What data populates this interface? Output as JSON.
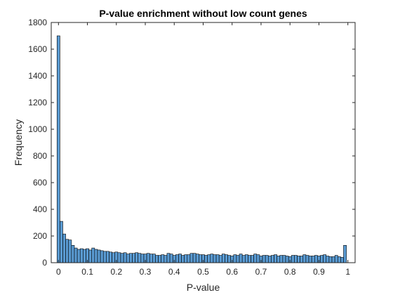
{
  "chart_data": {
    "type": "bar",
    "title": "P-value enrichment without low count genes",
    "xlabel": "P-value",
    "ylabel": "Frequency",
    "xlim": [
      -0.025,
      1.025
    ],
    "ylim": [
      0,
      1800
    ],
    "xticks": [
      0,
      0.1,
      0.2,
      0.3,
      0.4,
      0.5,
      0.6,
      0.7,
      0.8,
      0.9,
      1
    ],
    "xtick_labels": [
      "0",
      "0.1",
      "0.2",
      "0.3",
      "0.4",
      "0.5",
      "0.6",
      "0.7",
      "0.8",
      "0.9",
      "1"
    ],
    "yticks": [
      0,
      200,
      400,
      600,
      800,
      1000,
      1200,
      1400,
      1600,
      1800
    ],
    "ytick_labels": [
      "0",
      "200",
      "400",
      "600",
      "800",
      "1000",
      "1200",
      "1400",
      "1600",
      "1800"
    ],
    "grid": false,
    "bin_width": 0.01,
    "bin_start": -0.005,
    "values": [
      1700,
      310,
      215,
      175,
      170,
      130,
      110,
      100,
      105,
      100,
      105,
      95,
      110,
      100,
      95,
      90,
      85,
      85,
      80,
      75,
      80,
      75,
      70,
      75,
      65,
      70,
      70,
      75,
      70,
      65,
      65,
      70,
      65,
      65,
      55,
      55,
      60,
      55,
      70,
      65,
      55,
      60,
      65,
      55,
      60,
      60,
      70,
      70,
      65,
      60,
      60,
      55,
      60,
      65,
      60,
      60,
      55,
      65,
      60,
      55,
      50,
      60,
      55,
      65,
      55,
      60,
      55,
      55,
      65,
      60,
      50,
      55,
      55,
      50,
      55,
      60,
      50,
      55,
      55,
      50,
      45,
      55,
      55,
      50,
      50,
      60,
      55,
      50,
      50,
      55,
      50,
      55,
      60,
      50,
      45,
      45,
      55,
      45,
      40,
      130
    ],
    "bar_color": "#5a9bd3",
    "edge_color": "#000000"
  }
}
